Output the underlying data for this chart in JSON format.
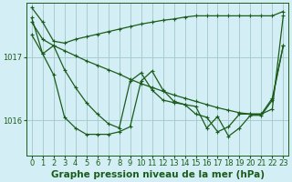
{
  "background_color": "#d4eef5",
  "line_color": "#1a5c1a",
  "grid_color": "#a0c8cc",
  "xlabel": "Graphe pression niveau de la mer (hPa)",
  "x_ticks": [
    0,
    1,
    2,
    3,
    4,
    5,
    6,
    7,
    8,
    9,
    10,
    11,
    12,
    13,
    14,
    15,
    16,
    17,
    18,
    19,
    20,
    21,
    22,
    23
  ],
  "ylim": [
    1015.45,
    1017.85
  ],
  "yticks": [
    1016,
    1017
  ],
  "series1": [
    1017.78,
    1017.55,
    1017.25,
    1017.22,
    1017.28,
    1017.32,
    1017.36,
    1017.4,
    1017.44,
    1017.48,
    1017.52,
    1017.55,
    1017.58,
    1017.6,
    1017.63,
    1017.65,
    1017.65,
    1017.65,
    1017.65,
    1017.65,
    1017.65,
    1017.65,
    1017.65,
    1017.72
  ],
  "series2": [
    1017.55,
    1017.28,
    1017.18,
    1017.1,
    1017.02,
    1016.94,
    1016.87,
    1016.8,
    1016.73,
    1016.65,
    1016.58,
    1016.52,
    1016.46,
    1016.4,
    1016.35,
    1016.3,
    1016.25,
    1016.2,
    1016.16,
    1016.12,
    1016.1,
    1016.1,
    1016.18,
    1017.65
  ],
  "series3": [
    1017.35,
    1017.05,
    1017.18,
    1016.8,
    1016.52,
    1016.28,
    1016.1,
    1015.95,
    1015.88,
    1016.62,
    1016.75,
    1016.48,
    1016.32,
    1016.28,
    1016.25,
    1016.1,
    1016.05,
    1015.82,
    1015.9,
    1016.1,
    1016.1,
    1016.1,
    1016.35,
    1017.18
  ],
  "series4": [
    1017.62,
    1017.05,
    1016.72,
    1016.05,
    1015.88,
    1015.78,
    1015.78,
    1015.78,
    1015.82,
    1015.9,
    1016.62,
    1016.78,
    1016.48,
    1016.3,
    1016.25,
    1016.22,
    1015.88,
    1016.06,
    1015.75,
    1015.88,
    1016.08,
    1016.08,
    1016.32,
    1017.18
  ],
  "marker": "+",
  "markersize": 3,
  "linewidth": 0.9,
  "xlabel_fontsize": 7.5,
  "tick_fontsize": 6.0
}
